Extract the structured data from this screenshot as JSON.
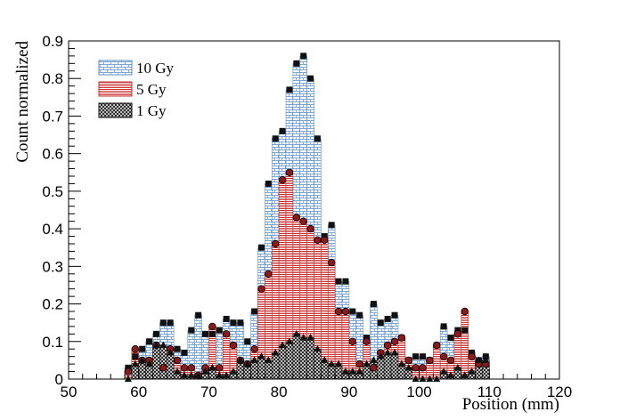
{
  "chart_data": {
    "type": "bar",
    "xlabel": "Position (mm)",
    "ylabel": "Count normalized",
    "xlim": [
      50,
      120
    ],
    "ylim": [
      0,
      0.9
    ],
    "x_ticks": [
      50,
      60,
      70,
      80,
      90,
      100,
      110,
      120
    ],
    "y_ticks": [
      0,
      0.1,
      0.2,
      0.3,
      0.4,
      0.5,
      0.6,
      0.7,
      0.8,
      0.9
    ],
    "grid": false,
    "legend_position": "top-left",
    "bin_width": 1,
    "x": [
      58.5,
      59.5,
      60.5,
      61.5,
      62.5,
      63.5,
      64.5,
      65.5,
      66.5,
      67.5,
      68.5,
      69.5,
      70.5,
      71.5,
      72.5,
      73.5,
      74.5,
      75.5,
      76.5,
      77.5,
      78.5,
      79.5,
      80.5,
      81.5,
      82.5,
      83.5,
      84.5,
      85.5,
      86.5,
      87.5,
      88.5,
      89.5,
      90.5,
      91.5,
      92.5,
      93.5,
      94.5,
      95.5,
      96.5,
      97.5,
      98.5,
      99.5,
      100.5,
      101.5,
      102.5,
      103.5,
      104.5,
      105.5,
      106.5,
      107.5,
      108.5,
      109.5
    ],
    "series": [
      {
        "name": "10 Gy",
        "marker": "square",
        "fill": "#7ba7d4",
        "values": [
          0.03,
          0.06,
          0.08,
          0.1,
          0.12,
          0.15,
          0.15,
          0.08,
          0.07,
          0.13,
          0.17,
          0.12,
          0.12,
          0.13,
          0.16,
          0.15,
          0.15,
          0.1,
          0.18,
          0.35,
          0.52,
          0.64,
          0.66,
          0.77,
          0.84,
          0.86,
          0.8,
          0.64,
          0.38,
          0.41,
          0.26,
          0.26,
          0.18,
          0.17,
          0.11,
          0.2,
          0.15,
          0.16,
          0.17,
          0.11,
          0.05,
          0.06,
          0.06,
          0.05,
          0.09,
          0.14,
          0.11,
          0.13,
          0.13,
          0.07,
          0.05,
          0.06
        ]
      },
      {
        "name": "5 Gy",
        "marker": "circle",
        "fill": "#d9534f",
        "values": [
          0.02,
          0.08,
          0.05,
          0.05,
          0.09,
          0.03,
          0.08,
          0.05,
          0.03,
          0.03,
          0.01,
          0.03,
          0.14,
          0.03,
          0.12,
          0.09,
          0.05,
          0.04,
          0.08,
          0.24,
          0.28,
          0.36,
          0.53,
          0.55,
          0.43,
          0.42,
          0.4,
          0.37,
          0.37,
          0.31,
          0.18,
          0.18,
          0.1,
          0.04,
          0.1,
          0.03,
          0.07,
          0.09,
          0.1,
          0.11,
          0.05,
          0.03,
          0.03,
          0.05,
          0.09,
          0.06,
          0.05,
          0.12,
          0.18,
          0.06,
          0.04,
          0.04
        ]
      },
      {
        "name": "1 Gy",
        "marker": "triangle",
        "fill": "#4a4a4a",
        "values": [
          0.0,
          0.04,
          0.05,
          0.04,
          0.09,
          0.09,
          0.07,
          0.02,
          0.01,
          0.01,
          0.01,
          0.02,
          0.03,
          0.01,
          0.01,
          0.02,
          0.05,
          0.04,
          0.05,
          0.06,
          0.05,
          0.07,
          0.09,
          0.1,
          0.12,
          0.11,
          0.11,
          0.08,
          0.05,
          0.04,
          0.04,
          0.02,
          0.02,
          0.02,
          0.04,
          0.05,
          0.06,
          0.07,
          0.07,
          0.04,
          0.03,
          0.0,
          0.0,
          0.0,
          0.0,
          0.02,
          0.01,
          0.03,
          0.01,
          0.02,
          0.05,
          0.05
        ]
      }
    ]
  }
}
